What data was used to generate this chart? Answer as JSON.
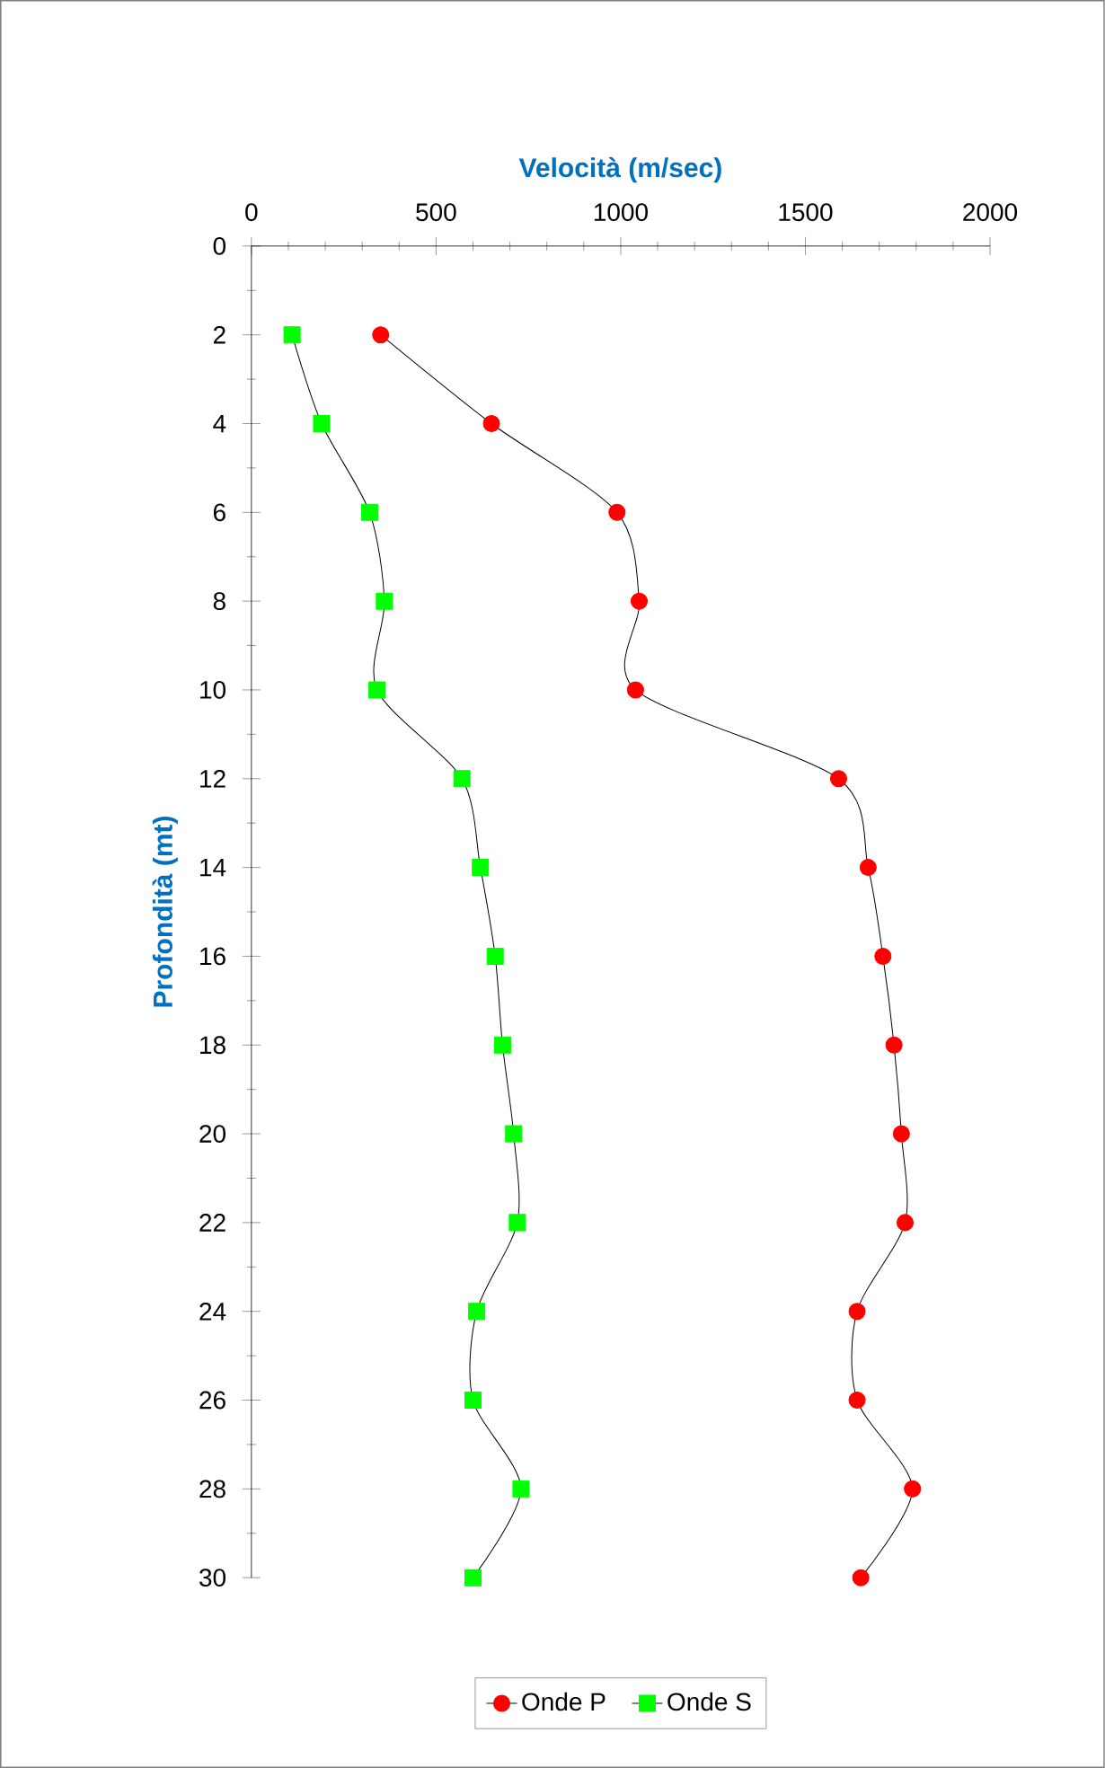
{
  "chart_data": {
    "type": "line",
    "xlabel": "Velocità (m/sec)",
    "ylabel": "Profondità (mt)",
    "xlim": [
      0,
      2000
    ],
    "xticks": [
      0,
      500,
      1000,
      1500,
      2000
    ],
    "ylim": [
      30,
      0
    ],
    "yticks": [
      0,
      2,
      4,
      6,
      8,
      10,
      12,
      14,
      16,
      18,
      20,
      22,
      24,
      26,
      28,
      30
    ],
    "legend": "bottom",
    "grid": false,
    "series": [
      {
        "name": "Onde P",
        "color": "#ff0000",
        "marker": "circle",
        "x": [
          350,
          650,
          990,
          1050,
          1040,
          1590,
          1670,
          1710,
          1740,
          1760,
          1770,
          1640,
          1640,
          1790,
          1650
        ],
        "values": [
          2,
          4,
          6,
          8,
          10,
          12,
          14,
          16,
          18,
          20,
          22,
          24,
          26,
          28,
          30
        ]
      },
      {
        "name": "Onde S",
        "color": "#00ff00",
        "marker": "square",
        "x": [
          110,
          190,
          320,
          360,
          340,
          570,
          620,
          660,
          680,
          710,
          720,
          610,
          600,
          730,
          600
        ],
        "values": [
          2,
          4,
          6,
          8,
          10,
          12,
          14,
          16,
          18,
          20,
          22,
          24,
          26,
          28,
          30
        ]
      }
    ]
  }
}
